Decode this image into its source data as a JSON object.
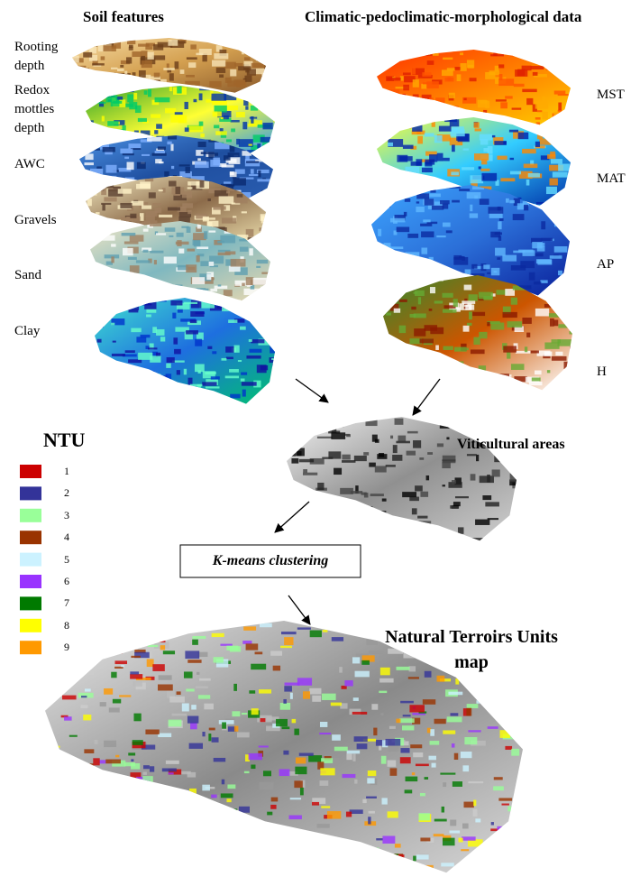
{
  "headings": {
    "soil": "Soil features",
    "climatic": "Climatic-pedoclimatic-morphological data"
  },
  "soil_layers": [
    "Rooting depth",
    "Redox mottles depth",
    "AWC",
    "Gravels",
    "Sand",
    "Clay"
  ],
  "climatic_layers": [
    "MST",
    "MAT",
    "AP",
    "H"
  ],
  "viticultural": "Viticultural areas",
  "clustering": "K-means clustering",
  "legend": {
    "title": "NTU",
    "items": [
      {
        "label": "1",
        "color": "#cc0000"
      },
      {
        "label": "2",
        "color": "#333399"
      },
      {
        "label": "3",
        "color": "#99ff99"
      },
      {
        "label": "4",
        "color": "#993300"
      },
      {
        "label": "5",
        "color": "#ccf2ff"
      },
      {
        "label": "6",
        "color": "#9933ff"
      },
      {
        "label": "7",
        "color": "#007a00"
      },
      {
        "label": "8",
        "color": "#ffff00"
      },
      {
        "label": "9",
        "color": "#ff9900"
      }
    ]
  },
  "result_title": "Natural Terroirs Units map"
}
